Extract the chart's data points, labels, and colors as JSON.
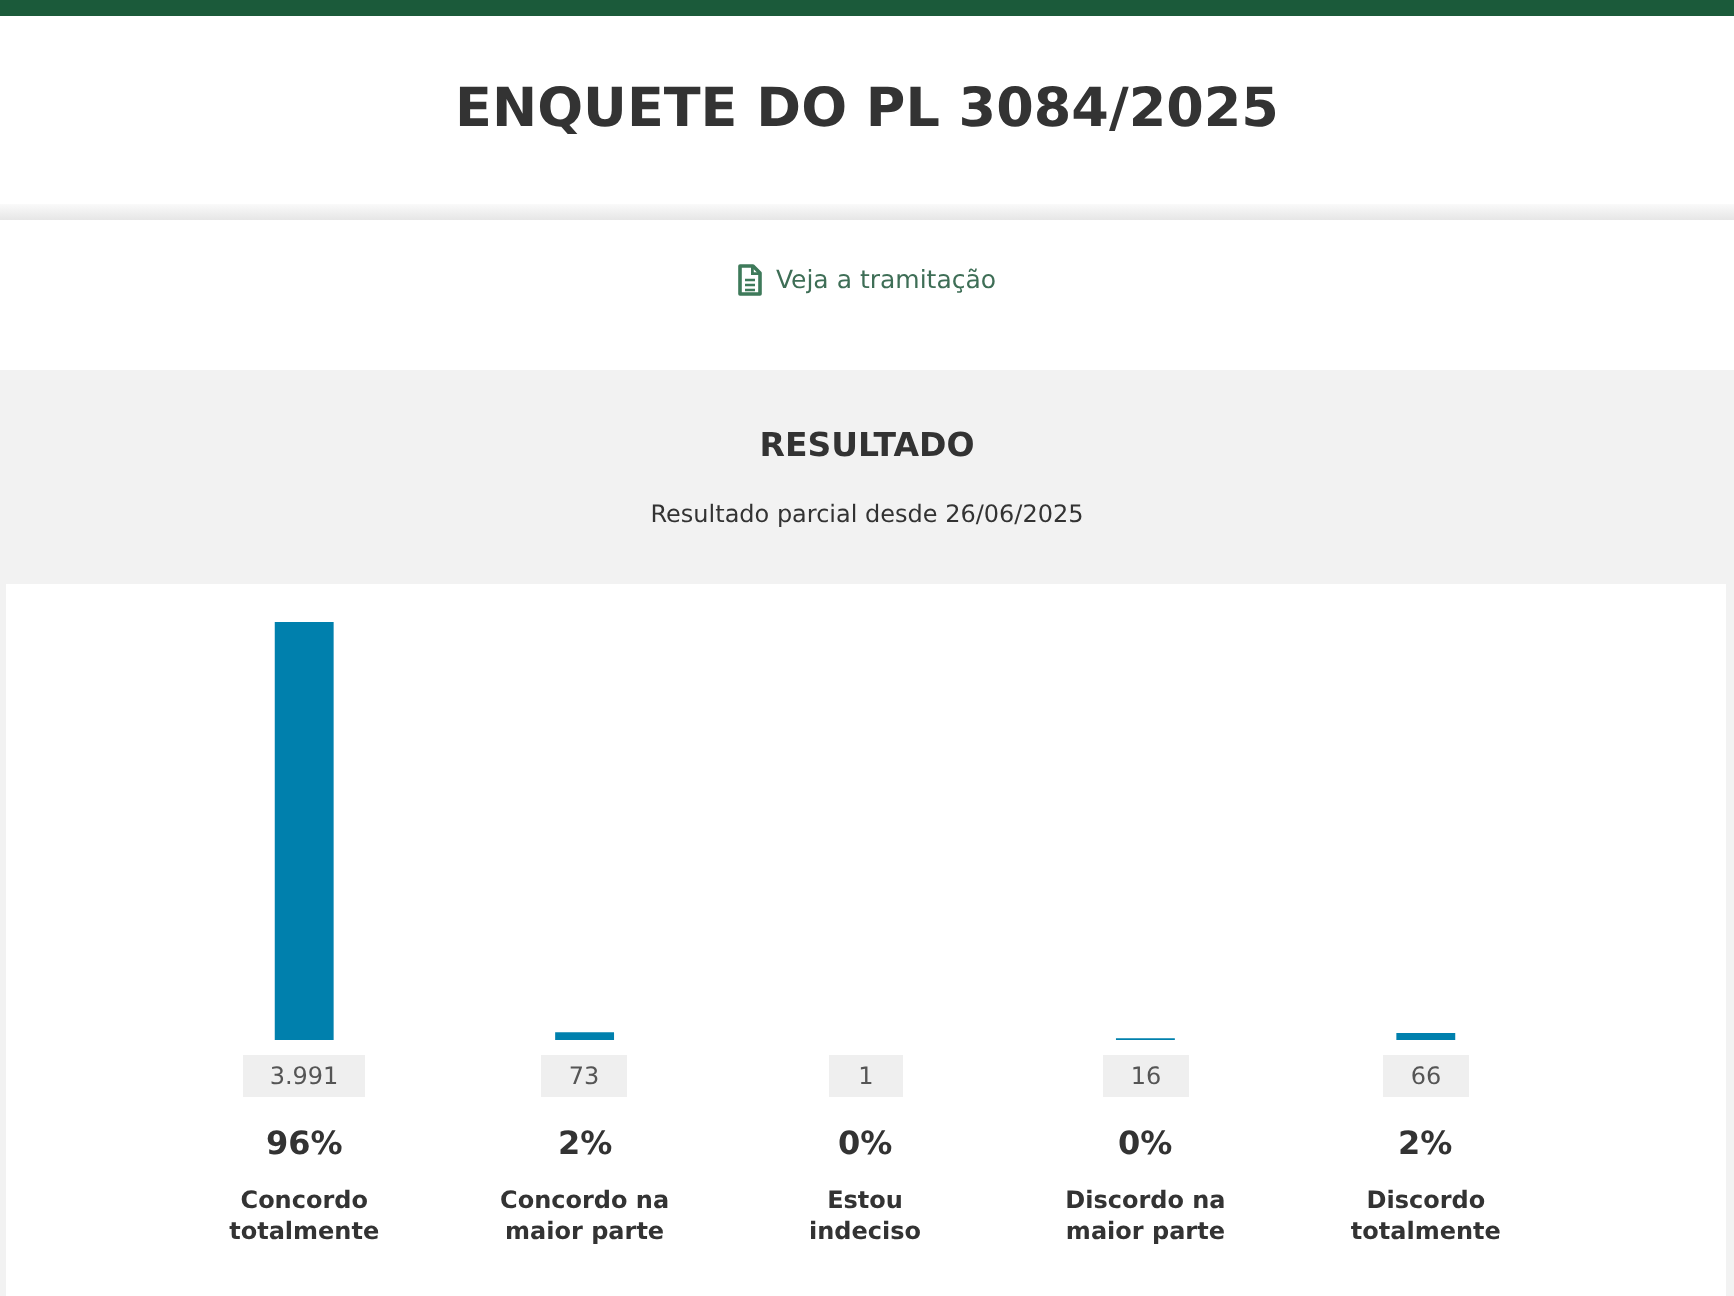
{
  "chart_data": {
    "type": "bar",
    "title": "ENQUETE DO PL 3084/2025",
    "subtitle": "Resultado parcial desde 26/06/2025",
    "annotations": [
      "Veja a tramitação",
      "RESULTADO",
      "96%",
      "2%",
      "0%",
      "0%",
      "2%"
    ],
    "categories": [
      "Concordo totalmente",
      "Concordo na maior parte",
      "Estou indeciso",
      "Discordo na maior parte",
      "Discordo totalmente"
    ],
    "values": [
      3991,
      73,
      1,
      16,
      66
    ],
    "value_labels": [
      "3.991",
      "73",
      "1",
      "16",
      "66"
    ],
    "color": "#0080ad"
  }
}
